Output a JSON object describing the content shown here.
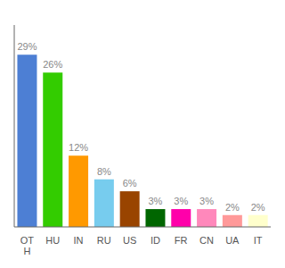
{
  "chart_data": {
    "type": "bar",
    "categories": [
      "OT\nH",
      "HU",
      "IN",
      "RU",
      "US",
      "ID",
      "FR",
      "CN",
      "UA",
      "IT"
    ],
    "values": [
      29,
      26,
      12,
      8,
      6,
      3,
      3,
      3,
      2,
      2
    ],
    "value_labels": [
      "29%",
      "26%",
      "12%",
      "8%",
      "6%",
      "3%",
      "3%",
      "3%",
      "2%",
      "2%"
    ],
    "colors": [
      "#4d7fd4",
      "#33cc00",
      "#ff9900",
      "#77ccee",
      "#994400",
      "#006600",
      "#ff00aa",
      "#ff88bb",
      "#ff9999",
      "#ffffcc"
    ],
    "ylim": [
      0,
      34
    ],
    "data_labels": true,
    "tick_labels": "x"
  }
}
